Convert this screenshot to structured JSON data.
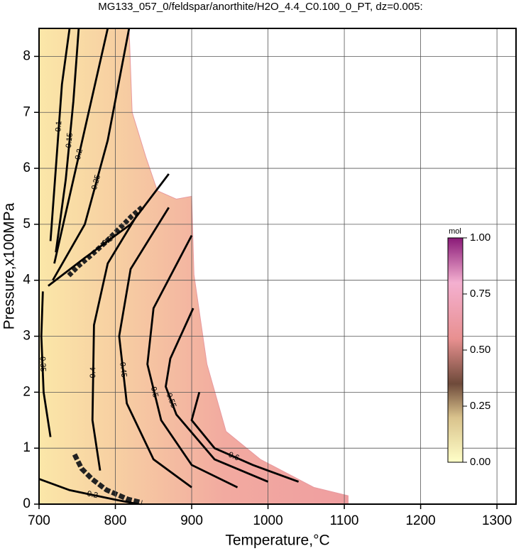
{
  "chart_data": {
    "type": "contour",
    "title": "MG133_057_0/feldspar/anorthite/H2O_4.4_C0.100_0_PT, dz=0.005:",
    "xlabel": "Temperature,°C",
    "ylabel": "Pressure,x100MPa",
    "xlim": [
      700,
      1325
    ],
    "xticks": [
      700,
      800,
      900,
      1000,
      1100,
      1200,
      1300
    ],
    "ylim": [
      0,
      8.5
    ],
    "yticks": [
      0,
      1,
      2,
      3,
      4,
      5,
      6,
      7,
      8
    ],
    "grid": true,
    "field": {
      "x": [
        700,
        700,
        818,
        822,
        840,
        855,
        880,
        900,
        903,
        920,
        945,
        990,
        1060,
        1105,
        1105
      ],
      "y": [
        0,
        8.5,
        8.5,
        7.0,
        6.2,
        5.6,
        5.45,
        5.5,
        4.1,
        2.5,
        1.3,
        0.8,
        0.3,
        0.15,
        0
      ]
    },
    "contours": [
      {
        "level": 0.1,
        "x": [
          740,
          730,
          722,
          715
        ],
        "y": [
          8.5,
          7.5,
          6.0,
          4.7
        ]
      },
      {
        "level": 0.15,
        "x": [
          752,
          745,
          735,
          722
        ],
        "y": [
          8.5,
          7.2,
          5.8,
          4.5
        ]
      },
      {
        "level": 0.2,
        "x": [
          790,
          765,
          740,
          720
        ],
        "y": [
          8.5,
          7.0,
          5.5,
          4.3
        ]
      },
      {
        "level": 0.25,
        "x": [
          818,
          790,
          760,
          718
        ],
        "y": [
          8.5,
          6.5,
          5.0,
          4.0
        ]
      },
      {
        "level": 0.3,
        "x": [
          870,
          820,
          760,
          712
        ],
        "y": [
          5.9,
          5.0,
          4.4,
          3.9
        ]
      },
      {
        "level": 0.35,
        "x": [
          705,
          703,
          706,
          715
        ],
        "y": [
          3.8,
          3.0,
          2.0,
          1.2
        ]
      },
      {
        "level": 0.4,
        "x": [
          830,
          790,
          772,
          770,
          780
        ],
        "y": [
          5.2,
          4.3,
          3.2,
          1.5,
          0.6
        ]
      },
      {
        "level": 0.45,
        "x": [
          870,
          820,
          805,
          815,
          850,
          900
        ],
        "y": [
          5.3,
          4.2,
          3.0,
          1.8,
          0.8,
          0.3
        ]
      },
      {
        "level": 0.5,
        "x": [
          900,
          850,
          842,
          860,
          900,
          960
        ],
        "y": [
          4.8,
          3.5,
          2.5,
          1.5,
          0.7,
          0.3
        ]
      },
      {
        "level": 0.55,
        "x": [
          902,
          872,
          866,
          880,
          930,
          1000
        ],
        "y": [
          3.5,
          2.6,
          2.1,
          1.6,
          0.8,
          0.4
        ]
      },
      {
        "level": 0.6,
        "x": [
          910,
          900,
          930,
          980,
          1040
        ],
        "y": [
          2.0,
          1.5,
          1.0,
          0.7,
          0.4
        ]
      },
      {
        "level": 0.2,
        "x": [
          700,
          740,
          800,
          830
        ],
        "y": [
          0.45,
          0.25,
          0.08,
          0
        ]
      }
    ],
    "colorbar": {
      "label": "mol",
      "clim": [
        0,
        1
      ],
      "ticks": [
        {
          "value": 0,
          "label": "0.00"
        },
        {
          "value": 0.25,
          "label": "0.25"
        },
        {
          "value": 0.5,
          "label": "0.50"
        },
        {
          "value": 0.75,
          "label": "0.75"
        },
        {
          "value": 1,
          "label": "1.00"
        }
      ]
    }
  }
}
